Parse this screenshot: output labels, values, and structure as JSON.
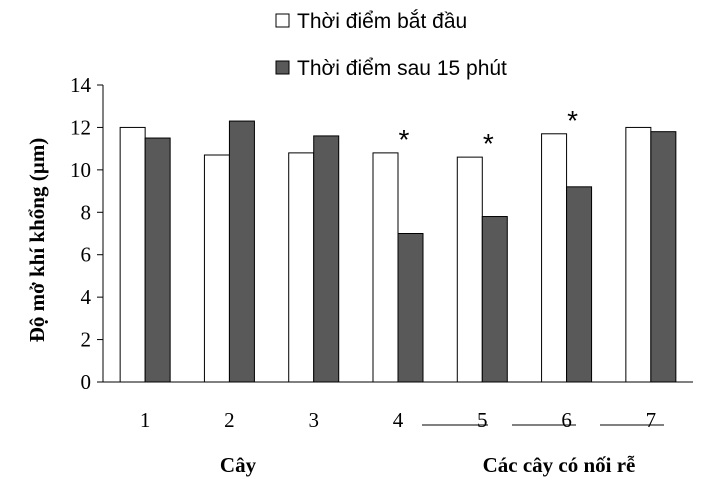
{
  "chart_data": {
    "type": "bar",
    "categories": [
      "1",
      "2",
      "3",
      "4",
      "5",
      "6",
      "7"
    ],
    "series": [
      {
        "name": "Thời điểm bắt đầu",
        "values": [
          12.0,
          10.7,
          10.8,
          10.8,
          10.6,
          11.7,
          12.0
        ],
        "color": "#ffffff"
      },
      {
        "name": "Thời điểm sau 15 phút",
        "values": [
          11.5,
          12.3,
          11.6,
          7.0,
          7.8,
          9.2,
          11.8
        ],
        "color": "#595959"
      }
    ],
    "ylabel": "Độ mở khí khổng (µm)",
    "ylim": [
      0,
      14
    ],
    "yticks": [
      "0",
      "2",
      "4",
      "6",
      "8",
      "10",
      "12",
      "14"
    ],
    "significance_marker": "*",
    "significant_categories": [
      "4",
      "5",
      "6"
    ],
    "group_labels": [
      "Cây",
      "Các cây có nối rễ"
    ],
    "legend_position": "top",
    "grid": false
  }
}
